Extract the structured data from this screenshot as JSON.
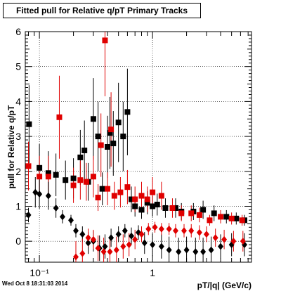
{
  "chart_data": {
    "type": "scatter",
    "title": "Fitted pull for Relative q/pT  Primary Tracks",
    "xlabel": "pT/|q| (GeV/c)",
    "ylabel": "pull for Relative q/pT",
    "xscale": "log",
    "xlim": [
      0.075,
      7.5
    ],
    "ylim": [
      -0.6,
      6
    ],
    "x_ticks": [
      {
        "value": 0.1,
        "label": "10⁻¹"
      },
      {
        "value": 1,
        "label": "1"
      }
    ],
    "y_ticks": [
      0,
      1,
      2,
      3,
      4,
      5,
      6
    ],
    "grid": true,
    "legend": "none",
    "series": [
      {
        "color": "#000000",
        "marker": "square",
        "points": [
          [
            0.081,
            3.35
          ],
          [
            0.1,
            2.1
          ],
          [
            0.12,
            1.95
          ],
          [
            0.14,
            1.9
          ],
          [
            0.17,
            1.75
          ],
          [
            0.2,
            1.8
          ],
          [
            0.23,
            2.4
          ],
          [
            0.25,
            2.6
          ],
          [
            0.27,
            1.7
          ],
          [
            0.3,
            3.5
          ],
          [
            0.33,
            3.0
          ],
          [
            0.36,
            1.5
          ],
          [
            0.4,
            2.7
          ],
          [
            0.42,
            3.1
          ],
          [
            0.45,
            2.8
          ],
          [
            0.5,
            3.4
          ],
          [
            0.55,
            3.0
          ],
          [
            0.6,
            3.7
          ],
          [
            0.65,
            1.2
          ],
          [
            0.7,
            1.0
          ],
          [
            0.8,
            0.9
          ],
          [
            0.9,
            1.1
          ],
          [
            1.0,
            1.0
          ],
          [
            1.1,
            1.05
          ],
          [
            1.3,
            0.95
          ],
          [
            1.6,
            0.95
          ],
          [
            1.8,
            0.85
          ],
          [
            2.3,
            0.85
          ],
          [
            2.8,
            0.9
          ],
          [
            3.5,
            0.8
          ],
          [
            4.5,
            0.7
          ],
          [
            5.5,
            0.65
          ],
          [
            6.5,
            0.6
          ]
        ]
      },
      {
        "color": "#e00000",
        "marker": "square",
        "points": [
          [
            0.08,
            2.15
          ],
          [
            0.1,
            1.85
          ],
          [
            0.12,
            1.85
          ],
          [
            0.15,
            3.55
          ],
          [
            0.2,
            1.6
          ],
          [
            0.23,
            1.75
          ],
          [
            0.26,
            1.7
          ],
          [
            0.3,
            1.85
          ],
          [
            0.33,
            1.25
          ],
          [
            0.35,
            2.75
          ],
          [
            0.38,
            5.75
          ],
          [
            0.4,
            1.5
          ],
          [
            0.43,
            3.2
          ],
          [
            0.46,
            1.3
          ],
          [
            0.52,
            1.4
          ],
          [
            0.6,
            1.55
          ],
          [
            0.7,
            1.2
          ],
          [
            0.8,
            1.3
          ],
          [
            0.9,
            1.2
          ],
          [
            1.0,
            1.4
          ],
          [
            1.2,
            1.3
          ],
          [
            1.5,
            0.95
          ],
          [
            1.8,
            0.8
          ],
          [
            2.2,
            0.8
          ],
          [
            2.6,
            0.75
          ],
          [
            3.2,
            0.6
          ],
          [
            4.0,
            0.7
          ],
          [
            5.0,
            0.65
          ],
          [
            6.2,
            0.6
          ]
        ]
      },
      {
        "color": "#000000",
        "marker": "diamond",
        "points": [
          [
            0.08,
            0.75
          ],
          [
            0.092,
            1.4
          ],
          [
            0.1,
            1.35
          ],
          [
            0.12,
            1.3
          ],
          [
            0.14,
            0.95
          ],
          [
            0.16,
            0.7
          ],
          [
            0.19,
            0.6
          ],
          [
            0.21,
            0.3
          ],
          [
            0.24,
            0.2
          ],
          [
            0.27,
            -0.05
          ],
          [
            0.3,
            0.0
          ],
          [
            0.34,
            -0.2
          ],
          [
            0.38,
            -0.15
          ],
          [
            0.43,
            0.1
          ],
          [
            0.5,
            0.2
          ],
          [
            0.57,
            0.3
          ],
          [
            0.65,
            0.15
          ],
          [
            0.75,
            0.25
          ],
          [
            0.85,
            -0.05
          ],
          [
            1.0,
            -0.1
          ],
          [
            1.2,
            -0.15
          ],
          [
            1.4,
            -0.25
          ],
          [
            1.7,
            -0.3
          ],
          [
            2.0,
            -0.25
          ],
          [
            2.4,
            -0.3
          ],
          [
            2.8,
            -0.3
          ],
          [
            3.3,
            -0.25
          ],
          [
            4.0,
            -0.15
          ],
          [
            5.0,
            -0.1
          ],
          [
            6.5,
            -0.1
          ]
        ]
      },
      {
        "color": "#e00000",
        "marker": "diamond",
        "points": [
          [
            0.21,
            -0.45
          ],
          [
            0.24,
            -0.35
          ],
          [
            0.27,
            0.1
          ],
          [
            0.3,
            0.05
          ],
          [
            0.33,
            -0.2
          ],
          [
            0.37,
            -0.3
          ],
          [
            0.42,
            -0.3
          ],
          [
            0.48,
            -0.25
          ],
          [
            0.55,
            -0.15
          ],
          [
            0.62,
            -0.1
          ],
          [
            0.7,
            0.05
          ],
          [
            0.8,
            0.2
          ],
          [
            0.92,
            0.35
          ],
          [
            1.05,
            0.4
          ],
          [
            1.2,
            0.35
          ],
          [
            1.4,
            0.35
          ],
          [
            1.6,
            0.3
          ],
          [
            1.9,
            0.3
          ],
          [
            2.2,
            0.3
          ],
          [
            2.6,
            0.25
          ],
          [
            3.0,
            0.2
          ],
          [
            3.6,
            0.1
          ],
          [
            4.3,
            0.05
          ],
          [
            5.2,
            0.0
          ],
          [
            6.3,
            0.0
          ]
        ]
      }
    ]
  },
  "footer": {
    "timestamp": "Wed Oct  8 18:31:03 2014"
  }
}
